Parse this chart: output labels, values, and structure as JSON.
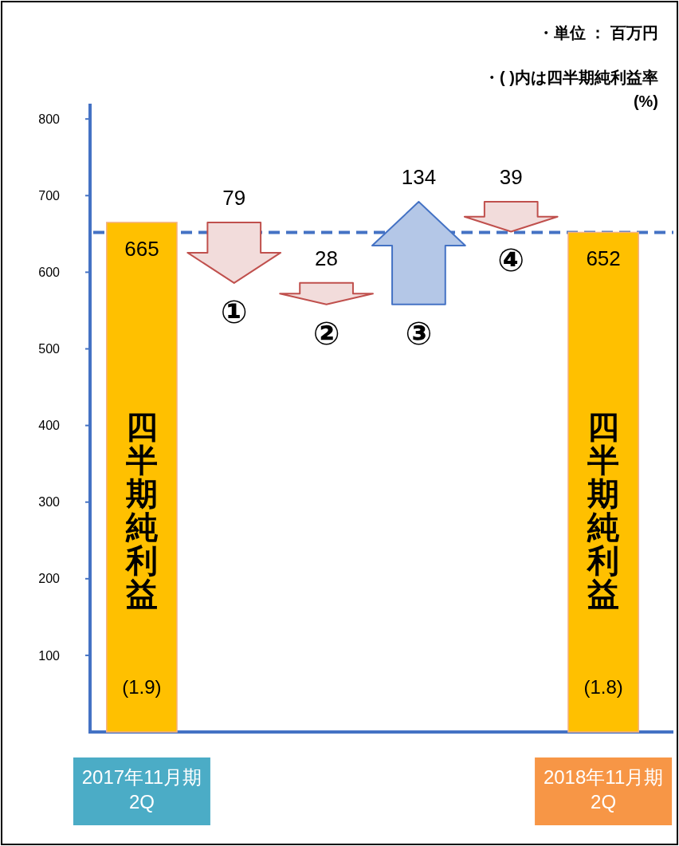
{
  "chart_data": {
    "type": "bar",
    "categories": [
      "2017年11月期\n2Q",
      null,
      null,
      null,
      null,
      "2018年11月期\n2Q"
    ],
    "values": [
      665,
      -79,
      -28,
      134,
      -39,
      652
    ],
    "base": [
      0,
      665,
      586,
      558,
      692,
      0
    ],
    "colors": [
      "#ffc000",
      "#f2dcdb",
      "#f2dcdb",
      "#b4c7e7",
      "#f2dcdb",
      "#ffc000"
    ],
    "value_labels": [
      "665",
      "79",
      "28",
      "134",
      "39",
      "652"
    ],
    "grid": false,
    "ylim": [
      0,
      820
    ],
    "yticks": [
      100,
      200,
      300,
      400,
      500,
      600,
      700,
      800
    ],
    "ref_lines": [
      {
        "axis": "y",
        "value": 652,
        "label": null,
        "color": "#4472c4",
        "line_style": "dashed"
      }
    ],
    "annotations": [
      "・単位 ： 百万円",
      "・( )内は四半期純利益率\n(%)",
      "①",
      "②",
      "③",
      "④",
      "四半期純利益",
      "四半期純利益",
      "(1.9)",
      "(1.8)"
    ]
  }
}
